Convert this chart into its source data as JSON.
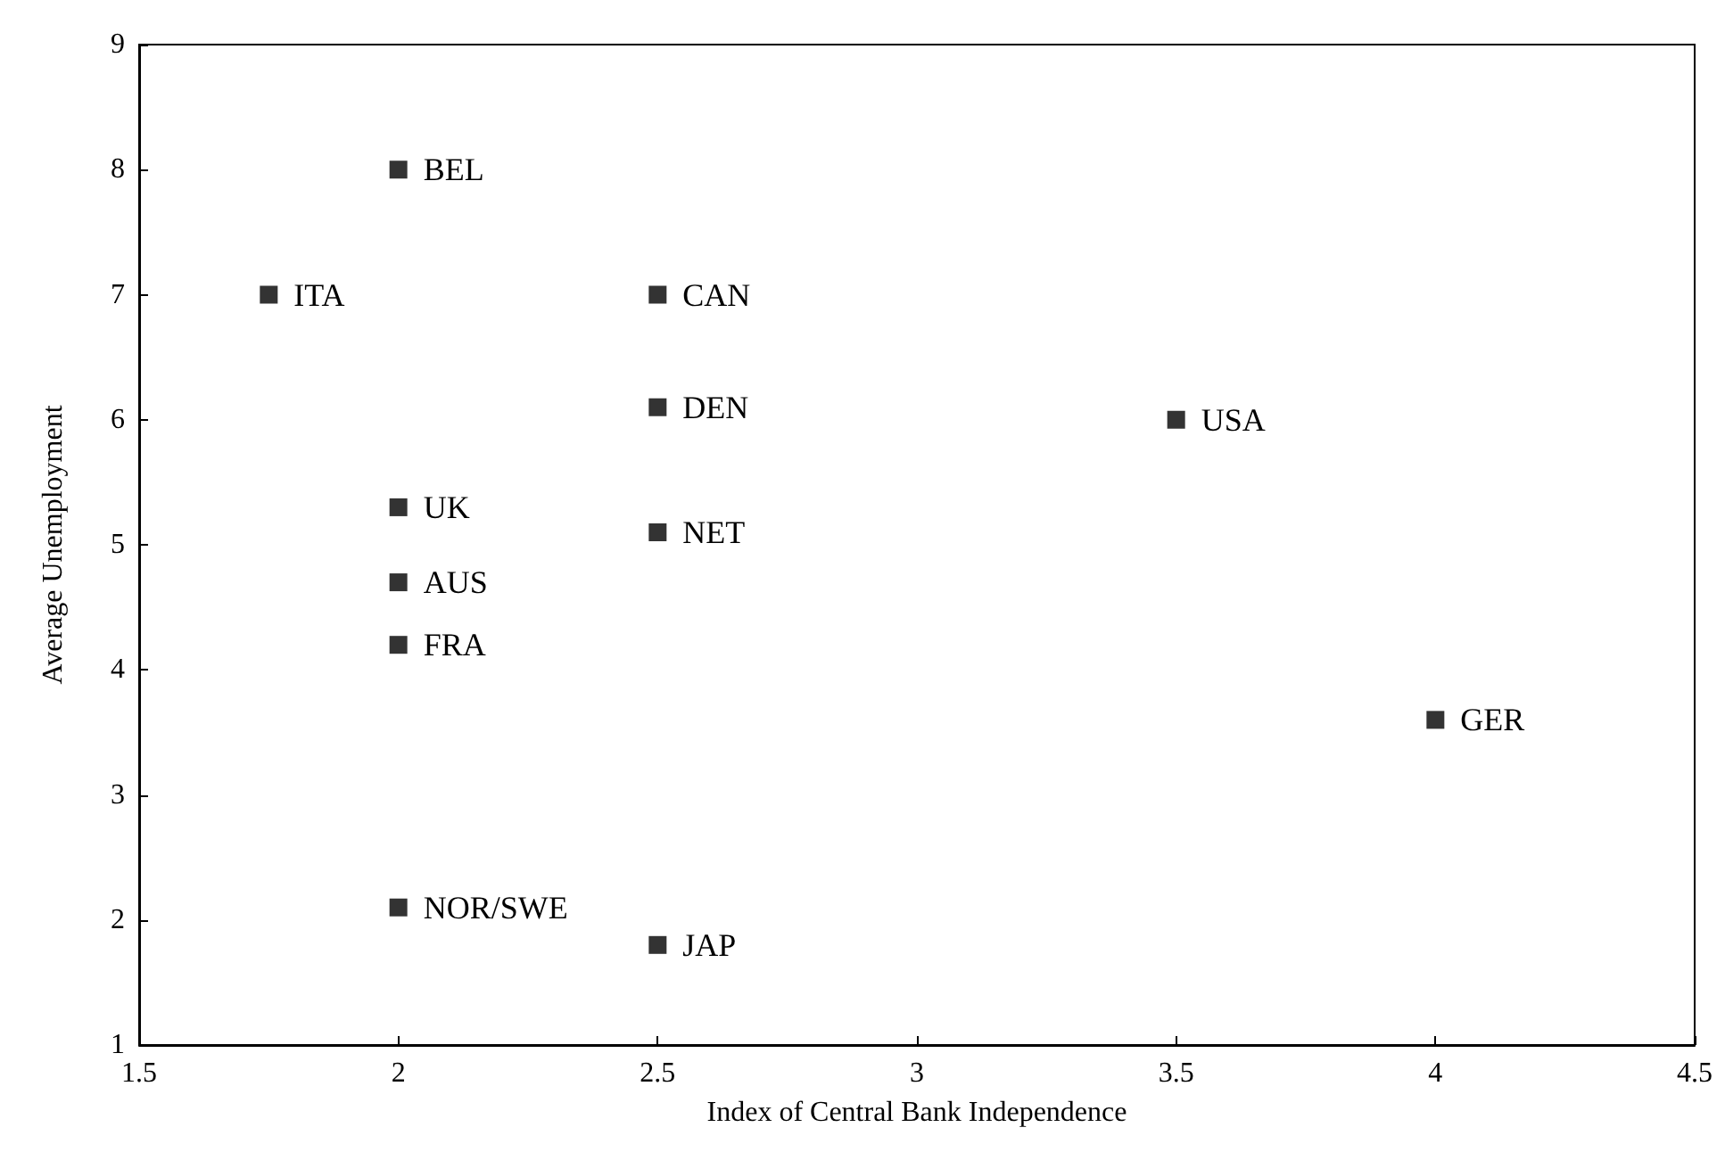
{
  "chart_data": {
    "type": "scatter",
    "xlabel": "Index of Central Bank Independence",
    "ylabel": "Average Unemployment",
    "x": [
      1.75,
      2,
      2.5,
      2.5,
      3.5,
      2,
      2.5,
      2,
      2,
      4,
      2,
      2.5
    ],
    "values": [
      7.0,
      8.0,
      7.0,
      6.1,
      6.0,
      5.3,
      5.1,
      4.7,
      4.2,
      3.6,
      2.1,
      1.8
    ],
    "color": "#000000",
    "marker": "square",
    "grid": false,
    "xlim": [
      1.5,
      4.5
    ],
    "xticks": [
      1.5,
      2,
      2.5,
      3,
      3.5,
      4,
      4.5
    ],
    "ylim": [
      1,
      9
    ],
    "yticks": [
      1,
      2,
      3,
      4,
      5,
      6,
      7,
      8,
      9
    ],
    "annotations": [
      {
        "text": "ITA",
        "x": 1.75,
        "y": 7.0
      },
      {
        "text": "BEL",
        "x": 2,
        "y": 8.0
      },
      {
        "text": "CAN",
        "x": 2.5,
        "y": 7.0
      },
      {
        "text": "DEN",
        "x": 2.5,
        "y": 6.1
      },
      {
        "text": "USA",
        "x": 3.5,
        "y": 6.0
      },
      {
        "text": "UK",
        "x": 2,
        "y": 5.3
      },
      {
        "text": "NET",
        "x": 2.5,
        "y": 5.1
      },
      {
        "text": "AUS",
        "x": 2,
        "y": 4.7
      },
      {
        "text": "FRA",
        "x": 2,
        "y": 4.2
      },
      {
        "text": "GER",
        "x": 4,
        "y": 3.6
      },
      {
        "text": "NOR/SWE",
        "x": 2,
        "y": 2.1
      },
      {
        "text": "JAP",
        "x": 2.5,
        "y": 1.8
      }
    ]
  }
}
